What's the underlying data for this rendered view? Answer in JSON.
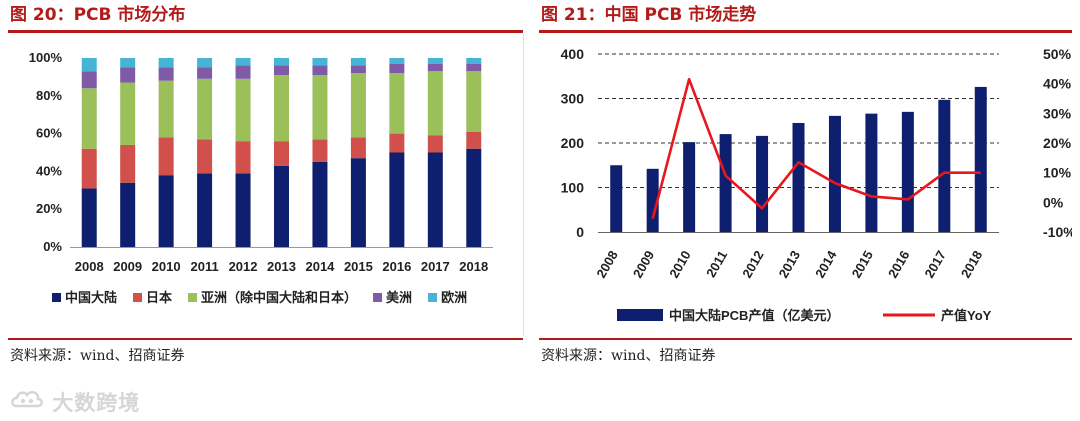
{
  "left_panel": {
    "title": "图 20：PCB 市场分布",
    "source": "资料来源：wind、招商证券"
  },
  "right_panel": {
    "title": "图 21：中国 PCB 市场走势",
    "source": "资料来源：wind、招商证券"
  },
  "watermark": {
    "text": "大数跨境",
    "icon": "cloud-logo-icon"
  },
  "colors": {
    "accent": "#b31b1b",
    "china": "#0d1f6e",
    "japan": "#d2504b",
    "asia": "#9bc05a",
    "america": "#7f5aa6",
    "europe": "#47b4d6",
    "yoy_line": "#e8161d"
  },
  "chart_data": [
    {
      "type": "stacked-bar",
      "title": "图 20：PCB 市场分布",
      "categories": [
        "2008",
        "2009",
        "2010",
        "2011",
        "2012",
        "2013",
        "2014",
        "2015",
        "2016",
        "2017",
        "2018"
      ],
      "ylim": [
        0,
        100
      ],
      "yticks": [
        "0%",
        "20%",
        "40%",
        "60%",
        "80%",
        "100%"
      ],
      "legend_position": "bottom",
      "series": [
        {
          "name": "中国大陆",
          "color_key": "china",
          "values": [
            31,
            34,
            38,
            39,
            39,
            43,
            45,
            47,
            50,
            50,
            52
          ]
        },
        {
          "name": "日本",
          "color_key": "japan",
          "values": [
            21,
            20,
            20,
            18,
            17,
            13,
            12,
            11,
            10,
            9,
            9
          ]
        },
        {
          "name": "亚洲（除中国大陆和日本）",
          "color_key": "asia",
          "values": [
            32,
            33,
            30,
            32,
            33,
            35,
            34,
            34,
            32,
            34,
            32
          ]
        },
        {
          "name": "美洲",
          "color_key": "america",
          "values": [
            9,
            8,
            7,
            6,
            7,
            5,
            5,
            4,
            5,
            4,
            4
          ]
        },
        {
          "name": "欧洲",
          "color_key": "europe",
          "values": [
            7,
            5,
            5,
            5,
            4,
            4,
            4,
            4,
            3,
            3,
            3
          ]
        }
      ]
    },
    {
      "type": "bar-line",
      "title": "图 21：中国 PCB 市场走势",
      "categories": [
        "2008",
        "2009",
        "2010",
        "2011",
        "2012",
        "2013",
        "2014",
        "2015",
        "2016",
        "2017",
        "2018"
      ],
      "grid": true,
      "legend_position": "bottom",
      "left_axis": {
        "ylim": [
          0,
          400
        ],
        "ticks": [
          "0",
          "100",
          "200",
          "300",
          "400"
        ]
      },
      "right_axis": {
        "ylim": [
          -10,
          50
        ],
        "ticks": [
          "-10%",
          "0%",
          "10%",
          "20%",
          "30%",
          "40%",
          "50%"
        ]
      },
      "bars": {
        "name": "中国大陆PCB产值（亿美元）",
        "color_key": "china",
        "values": [
          150,
          142,
          202,
          220,
          216,
          245,
          261,
          266,
          270,
          297,
          326
        ]
      },
      "line": {
        "name": "产值YoY",
        "color_key": "yoy_line",
        "values": [
          null,
          -5.5,
          41.5,
          9,
          -2,
          13.5,
          6.5,
          2,
          1,
          10,
          10
        ]
      }
    }
  ]
}
